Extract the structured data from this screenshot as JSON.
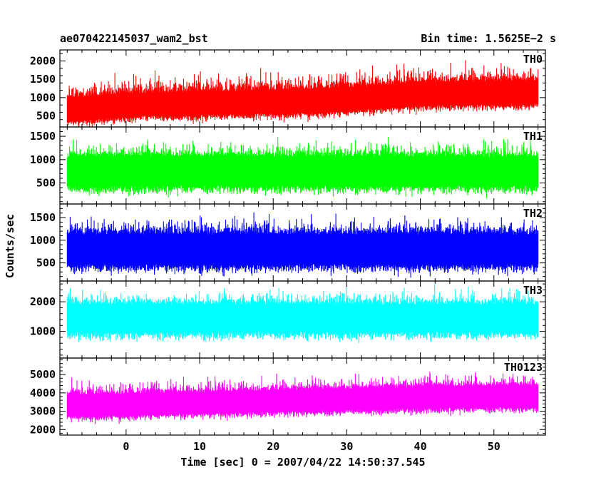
{
  "header": {
    "title_left": "ae070422145037_wam2_bst",
    "title_right": "Bin time: 1.5625E−2 s"
  },
  "chart_data": {
    "type": "line",
    "xlabel": "Time [sec] 0 = 2007/04/22 14:50:37.545",
    "ylabel": "Counts/sec",
    "xlim": [
      -9,
      57
    ],
    "x_ticks": [
      0,
      10,
      20,
      30,
      40,
      50
    ],
    "x_range_data": [
      -8,
      56
    ],
    "panels": [
      {
        "name": "TH0",
        "color": "#ff0000",
        "ylim": [
          200,
          2300
        ],
        "y_ticks": [
          500,
          1000,
          1500,
          2000
        ],
        "trend": [
          [
            -8,
            650
          ],
          [
            0,
            800
          ],
          [
            10,
            850
          ],
          [
            20,
            880
          ],
          [
            30,
            950
          ],
          [
            40,
            1100
          ],
          [
            56,
            1150
          ]
        ],
        "spread": 300,
        "spike": 650,
        "floor": 250
      },
      {
        "name": "TH1",
        "color": "#00ff00",
        "ylim": [
          50,
          1700
        ],
        "y_ticks": [
          500,
          1000,
          1500
        ],
        "trend": [
          [
            -8,
            750
          ],
          [
            56,
            750
          ]
        ],
        "spread": 300,
        "spike": 550,
        "floor": 100
      },
      {
        "name": "TH2",
        "color": "#0000ff",
        "ylim": [
          100,
          1800
        ],
        "y_ticks": [
          500,
          1000,
          1500
        ],
        "trend": [
          [
            -8,
            800
          ],
          [
            56,
            800
          ]
        ],
        "spread": 320,
        "spike": 600,
        "floor": 150
      },
      {
        "name": "TH3",
        "color": "#00ffff",
        "ylim": [
          100,
          2700
        ],
        "y_ticks": [
          1000,
          2000
        ],
        "trend": [
          [
            -8,
            1450
          ],
          [
            56,
            1450
          ]
        ],
        "spread": 450,
        "spike": 800,
        "floor": 350
      },
      {
        "name": "TH0123",
        "color": "#ff00ff",
        "ylim": [
          1700,
          5900
        ],
        "y_ticks": [
          2000,
          3000,
          4000,
          5000
        ],
        "trend": [
          [
            -8,
            3300
          ],
          [
            20,
            3550
          ],
          [
            40,
            3750
          ],
          [
            56,
            3800
          ]
        ],
        "spread": 550,
        "spike": 1100,
        "floor": 1800
      }
    ]
  }
}
